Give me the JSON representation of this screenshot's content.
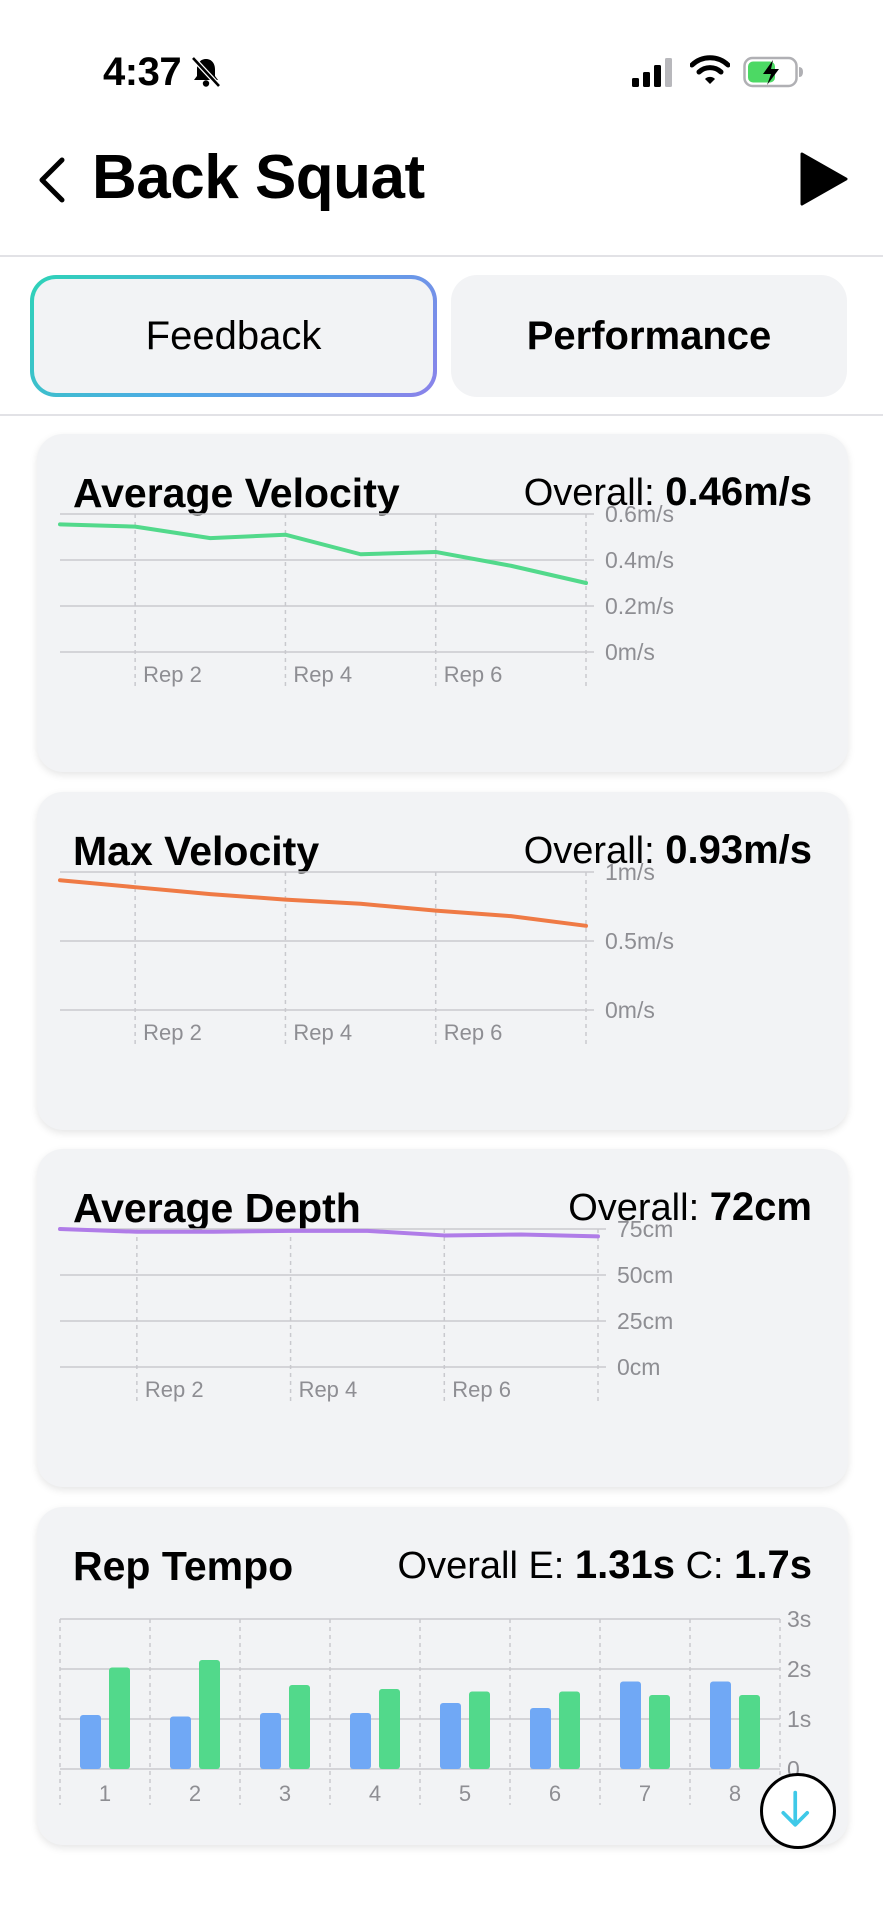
{
  "status": {
    "time": "4:37",
    "icons": [
      "bell-slash-icon",
      "cellular-signal-icon",
      "wifi-icon",
      "battery-charging-icon"
    ]
  },
  "header": {
    "title": "Back Squat",
    "back_icon": "chevron-left-icon",
    "play_icon": "play-icon"
  },
  "tabs": [
    {
      "label": "Feedback",
      "selected": true
    },
    {
      "label": "Performance",
      "selected": false
    }
  ],
  "colors": {
    "avg_velocity": "#52d98b",
    "max_velocity": "#ef7a45",
    "depth": "#b07ce8",
    "eccentric": "#70a8f5",
    "concentric": "#52d98b"
  },
  "cards": {
    "avg_velocity": {
      "title": "Average Velocity",
      "overall_label": "Overall:",
      "overall_value": "0.46m/s"
    },
    "max_velocity": {
      "title": "Max Velocity",
      "overall_label": "Overall:",
      "overall_value": "0.93m/s"
    },
    "avg_depth": {
      "title": "Average Depth",
      "overall_label": "Overall:",
      "overall_value": "72cm"
    },
    "rep_tempo": {
      "title": "Rep Tempo",
      "overall_e_label": "Overall E:",
      "overall_e_value": "1.31s",
      "overall_c_label": "C:",
      "overall_c_value": "1.7s"
    }
  },
  "chart_data": [
    {
      "type": "line",
      "x": [
        1,
        2,
        3,
        4,
        5,
        6,
        7,
        8
      ],
      "x_tick_labels": [
        "Rep 2",
        "Rep 4",
        "Rep 6"
      ],
      "x_tick_positions": [
        2,
        4,
        6
      ],
      "series": [
        {
          "values": [
            0.555,
            0.545,
            0.495,
            0.51,
            0.425,
            0.435,
            0.375,
            0.3
          ]
        }
      ],
      "ylim": [
        0,
        0.6
      ],
      "y_ticks": [
        0,
        0.2,
        0.4,
        0.6
      ],
      "y_tick_labels": [
        "0m/s",
        "0.2m/s",
        "0.4m/s",
        "0.6m/s"
      ],
      "grid": true
    },
    {
      "type": "line",
      "x": [
        1,
        2,
        3,
        4,
        5,
        6,
        7,
        8
      ],
      "x_tick_labels": [
        "Rep 2",
        "Rep 4",
        "Rep 6"
      ],
      "x_tick_positions": [
        2,
        4,
        6
      ],
      "series": [
        {
          "values": [
            0.94,
            0.89,
            0.84,
            0.8,
            0.77,
            0.72,
            0.68,
            0.61
          ]
        }
      ],
      "ylim": [
        0,
        1
      ],
      "y_ticks": [
        0,
        0.5,
        1
      ],
      "y_tick_labels": [
        "0m/s",
        "0.5m/s",
        "1m/s"
      ],
      "grid": true
    },
    {
      "type": "line",
      "x": [
        1,
        2,
        3,
        4,
        5,
        6,
        7,
        8
      ],
      "x_tick_labels": [
        "Rep 2",
        "Rep 4",
        "Rep 6"
      ],
      "x_tick_positions": [
        2,
        4,
        6
      ],
      "series": [
        {
          "values": [
            75,
            73.5,
            73.5,
            74,
            74,
            71.5,
            72,
            71
          ]
        }
      ],
      "ylim": [
        0,
        75
      ],
      "y_ticks": [
        0,
        25,
        50,
        75
      ],
      "y_tick_labels": [
        "0cm",
        "25cm",
        "50cm",
        "75cm"
      ],
      "grid": true
    },
    {
      "type": "bar",
      "categories": [
        "1",
        "2",
        "3",
        "4",
        "5",
        "6",
        "7",
        "8"
      ],
      "series": [
        {
          "values": [
            1.08,
            1.05,
            1.12,
            1.12,
            1.32,
            1.22,
            1.75,
            1.75
          ]
        },
        {
          "values": [
            2.03,
            2.18,
            1.68,
            1.6,
            1.55,
            1.55,
            1.48,
            1.48
          ]
        }
      ],
      "ylim": [
        0,
        3
      ],
      "y_ticks": [
        0,
        1,
        2,
        3
      ],
      "y_tick_labels": [
        "0",
        "1s",
        "2s",
        "3s"
      ],
      "grid": true
    }
  ]
}
